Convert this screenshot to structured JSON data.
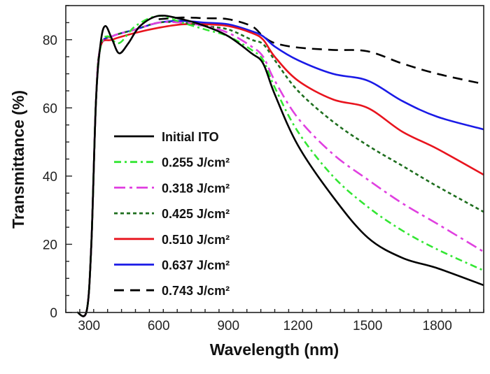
{
  "chart_data": {
    "type": "line",
    "title": "",
    "xlabel": "Wavelength (nm)",
    "ylabel": "Transmittance (%)",
    "xlim": [
      200,
      2000
    ],
    "ylim": [
      0,
      90
    ],
    "xticks": [
      300,
      600,
      900,
      1200,
      1500,
      1800
    ],
    "yticks": [
      0,
      20,
      40,
      60,
      80
    ],
    "grid": false,
    "legend_position": "center-left",
    "series": [
      {
        "name": "Initial ITO",
        "color": "#000000",
        "dash": "solid",
        "x": [
          250,
          290,
          310,
          330,
          350,
          370,
          400,
          430,
          470,
          520,
          600,
          700,
          800,
          900,
          1000,
          1050,
          1100,
          1200,
          1350,
          1500,
          1650,
          1800,
          2000
        ],
        "y": [
          0,
          0.5,
          20,
          62,
          79,
          84,
          80,
          76,
          79,
          84,
          87,
          86,
          84,
          81,
          76,
          73,
          64,
          49,
          34,
          22,
          16,
          13,
          8
        ]
      },
      {
        "name": "0.255 J/cm²",
        "color": "#33e633",
        "dash": "dashdot",
        "x": [
          250,
          290,
          310,
          330,
          350,
          380,
          430,
          500,
          600,
          700,
          800,
          900,
          1000,
          1050,
          1100,
          1200,
          1350,
          1500,
          1650,
          1800,
          2000
        ],
        "y": [
          0,
          0.5,
          20,
          62,
          78,
          81,
          79,
          84,
          87,
          85,
          83,
          81,
          77,
          74,
          66,
          53,
          40,
          31,
          24,
          18.5,
          12.3
        ]
      },
      {
        "name": "0.318 J/cm²",
        "color": "#e040e0",
        "dash": "dashdot-long",
        "x": [
          250,
          290,
          310,
          330,
          350,
          400,
          500,
          600,
          700,
          800,
          900,
          1000,
          1050,
          1100,
          1200,
          1350,
          1500,
          1650,
          1800,
          2000
        ],
        "y": [
          0,
          0.5,
          20,
          62,
          78,
          81,
          83,
          85,
          85,
          84,
          82,
          78,
          75,
          68,
          57,
          46.5,
          39,
          32,
          26,
          17.8
        ]
      },
      {
        "name": "0.425 J/cm²",
        "color": "#1e6e1e",
        "dash": "shortdash",
        "x": [
          250,
          290,
          310,
          330,
          350,
          400,
          500,
          600,
          700,
          800,
          900,
          1000,
          1050,
          1100,
          1200,
          1350,
          1500,
          1650,
          1800,
          2000
        ],
        "y": [
          0,
          0.5,
          20,
          62,
          78,
          81,
          83,
          85,
          85,
          84,
          83,
          80,
          78.7,
          74,
          65,
          56,
          49,
          43,
          37,
          29.5
        ]
      },
      {
        "name": "0.510 J/cm²",
        "color": "#e8141e",
        "dash": "solid",
        "x": [
          250,
          290,
          310,
          330,
          350,
          400,
          500,
          600,
          700,
          800,
          900,
          1000,
          1050,
          1100,
          1200,
          1350,
          1500,
          1650,
          1800,
          2000
        ],
        "y": [
          0,
          0.5,
          20,
          62,
          78,
          80,
          82,
          83.5,
          84.5,
          84.5,
          84,
          82,
          80,
          75,
          68,
          62.5,
          60,
          53,
          48,
          40.4
        ]
      },
      {
        "name": "0.637 J/cm²",
        "color": "#1a1ae6",
        "dash": "solid",
        "x": [
          250,
          290,
          310,
          330,
          350,
          400,
          500,
          600,
          700,
          800,
          900,
          1000,
          1050,
          1100,
          1200,
          1350,
          1500,
          1650,
          1800,
          2000
        ],
        "y": [
          0,
          0.5,
          20,
          62,
          78,
          81,
          83,
          85,
          85.5,
          85,
          84.5,
          82.5,
          81,
          78,
          74,
          70,
          68,
          62,
          57.4,
          53.7
        ]
      },
      {
        "name": "0.743 J/cm²",
        "color": "#000000",
        "dash": "longdash",
        "x": [
          600,
          700,
          800,
          900,
          1000,
          1050,
          1100,
          1200,
          1350,
          1500,
          1650,
          1800,
          2000
        ],
        "y": [
          86,
          86.5,
          86.3,
          86,
          84,
          81,
          79,
          77.7,
          77,
          76.6,
          73,
          70,
          67
        ]
      }
    ]
  }
}
